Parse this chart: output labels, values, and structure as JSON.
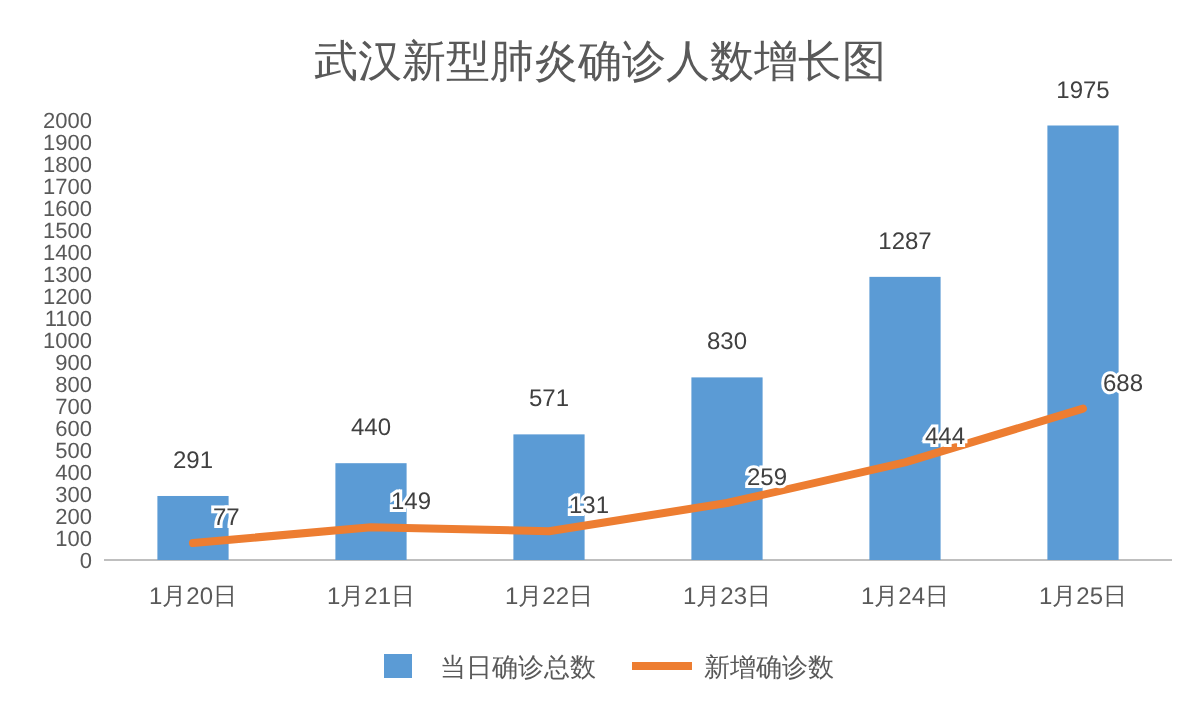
{
  "chart_data": {
    "type": "bar",
    "title": "武汉新型肺炎确诊人数增长图",
    "categories": [
      "1月20日",
      "1月21日",
      "1月22日",
      "1月23日",
      "1月24日",
      "1月25日"
    ],
    "series": [
      {
        "name": "当日确诊总数",
        "color": "#5b9bd5",
        "values": [
          291,
          440,
          571,
          830,
          1287,
          1975
        ]
      },
      {
        "name": "新增确诊数",
        "type": "line",
        "color": "#ed7d31",
        "values": [
          77,
          149,
          131,
          259,
          444,
          688
        ]
      }
    ],
    "ylim": [
      0,
      2000
    ],
    "yticks": [
      0,
      100,
      200,
      300,
      400,
      500,
      600,
      700,
      800,
      900,
      1000,
      1100,
      1200,
      1300,
      1400,
      1500,
      1600,
      1700,
      1800,
      1900,
      2000
    ],
    "data_labels": true,
    "legend": "bottom",
    "marker": "none"
  }
}
